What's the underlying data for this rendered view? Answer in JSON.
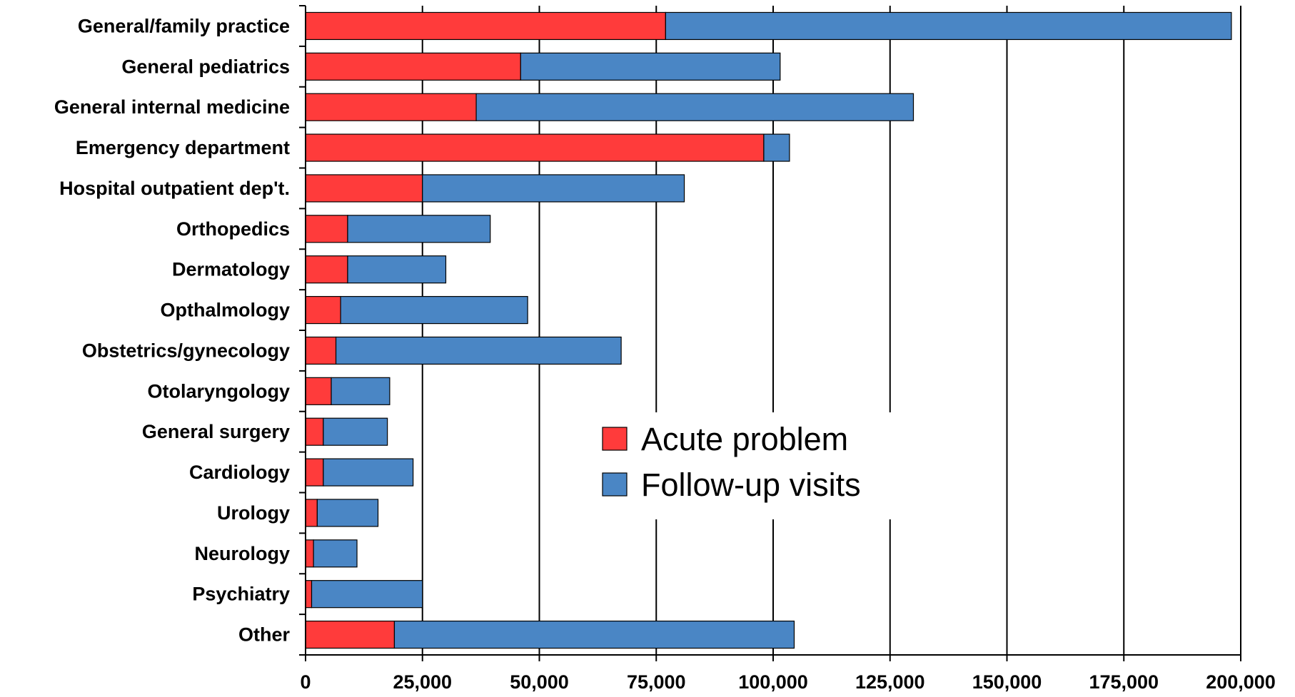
{
  "chart_data": {
    "type": "bar",
    "orientation": "horizontal",
    "stacked": true,
    "categories": [
      "General/family practice",
      "General pediatrics",
      "General internal medicine",
      "Emergency department",
      "Hospital outpatient dep't.",
      "Orthopedics",
      "Dermatology",
      "Opthalmology",
      "Obstetrics/gynecology",
      "Otolaryngology",
      "General surgery",
      "Cardiology",
      "Urology",
      "Neurology",
      "Psychiatry",
      "Other"
    ],
    "series": [
      {
        "name": "Acute problem",
        "color": "#ff3b3b",
        "values": [
          77000,
          46000,
          36500,
          98000,
          25000,
          9000,
          9000,
          7500,
          6500,
          5500,
          3800,
          3800,
          2500,
          1700,
          1300,
          19000
        ]
      },
      {
        "name": "Follow-up visits",
        "color": "#4a86c5",
        "values": [
          121000,
          55500,
          93500,
          5500,
          56000,
          30500,
          21000,
          40000,
          61000,
          12500,
          13700,
          19200,
          13000,
          9300,
          23700,
          85500
        ]
      }
    ],
    "xlim": [
      0,
      200000
    ],
    "xticks": [
      0,
      25000,
      50000,
      75000,
      100000,
      125000,
      150000,
      175000,
      200000
    ],
    "xtick_labels": [
      "0",
      "25,000",
      "50,000",
      "75,000",
      "100,000",
      "125,000",
      "150,000",
      "175,000",
      "200,000"
    ],
    "grid": "vertical",
    "legend": "center"
  }
}
